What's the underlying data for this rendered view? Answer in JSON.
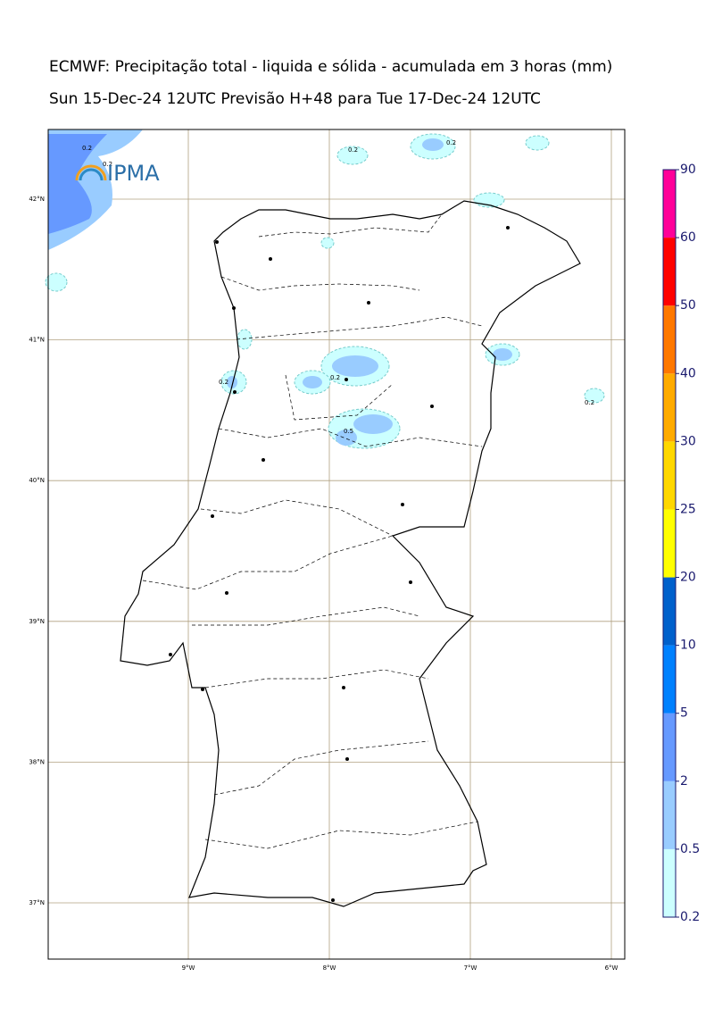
{
  "header": {
    "title": "ECMWF: Precipitação total - liquida e sólida - acumulada em 3 horas (mm)",
    "subtitle": "Sun 15-Dec-24 12UTC Previsão H+48 para Tue 17-Dec-24 12UTC"
  },
  "logo": "IPMA",
  "map": {
    "lat_ticks": [
      {
        "value": 42,
        "label": "42°N"
      },
      {
        "value": 41,
        "label": "41°N"
      },
      {
        "value": 40,
        "label": "40°N"
      },
      {
        "value": 39,
        "label": "39°N"
      },
      {
        "value": 38,
        "label": "38°N"
      },
      {
        "value": 37,
        "label": "37°N"
      }
    ],
    "lon_ticks": [
      {
        "value": -9,
        "label": "9°W"
      },
      {
        "value": -8,
        "label": "8°W"
      },
      {
        "value": -7,
        "label": "7°W"
      },
      {
        "value": -6,
        "label": "6°W"
      }
    ],
    "contour_labels": [
      "0.2",
      "0.2",
      "0.2",
      "0.2",
      "0.2",
      "0.2",
      "0.2",
      "0.5"
    ]
  },
  "legend": {
    "levels": [
      0.2,
      0.5,
      2,
      5,
      10,
      20,
      25,
      30,
      40,
      50,
      60,
      90
    ],
    "colors": [
      "#ccffff",
      "#99ccff",
      "#6699ff",
      "#0080ff",
      "#0060cc",
      "#ffff00",
      "#ffd700",
      "#ffaa00",
      "#ff7700",
      "#ff0000",
      "#ff0099"
    ]
  }
}
